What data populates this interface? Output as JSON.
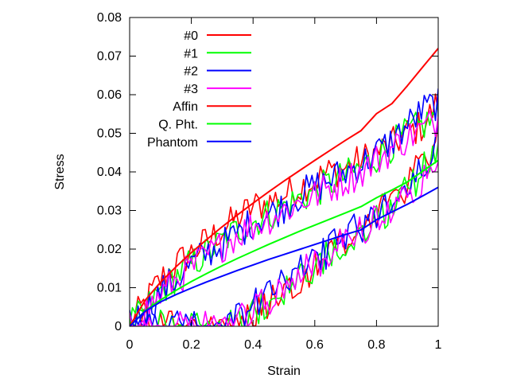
{
  "chart_data": {
    "type": "line",
    "title": "",
    "xlabel": "Strain",
    "ylabel": "Stress",
    "xlim": [
      0,
      1
    ],
    "ylim": [
      0,
      0.08
    ],
    "xticks": [
      "0",
      "0.2",
      "0.4",
      "0.6",
      "0.8",
      "1"
    ],
    "yticks": [
      "0",
      "0.01",
      "0.02",
      "0.03",
      "0.04",
      "0.05",
      "0.06",
      "0.07",
      "0.08"
    ],
    "grid": false,
    "legend_position": "top-left",
    "series": [
      {
        "name": "#0",
        "color": "#ff0000",
        "kind": "noisy",
        "x": [
          0,
          0.05,
          0.1,
          0.15,
          0.2,
          0.25,
          0.3,
          0.35,
          0.4,
          0.45,
          0.5,
          0.55,
          0.6,
          0.65,
          0.7,
          0.75,
          0.8,
          0.85,
          0.9,
          0.95,
          1.0
        ],
        "up": [
          0,
          0.006,
          0.012,
          0.016,
          0.019,
          0.022,
          0.025,
          0.028,
          0.031,
          0.032,
          0.034,
          0.036,
          0.038,
          0.04,
          0.041,
          0.043,
          0.045,
          0.047,
          0.05,
          0.052,
          0.058
        ],
        "down": [
          0,
          0,
          0,
          0,
          0,
          0,
          0,
          0,
          0.002,
          0.006,
          0.009,
          0.012,
          0.016,
          0.019,
          0.022,
          0.026,
          0.029,
          0.033,
          0.037,
          0.042,
          0.05
        ]
      },
      {
        "name": "#1",
        "color": "#00ff00",
        "kind": "noisy",
        "x": [
          0,
          0.05,
          0.1,
          0.15,
          0.2,
          0.25,
          0.3,
          0.35,
          0.4,
          0.45,
          0.5,
          0.55,
          0.6,
          0.65,
          0.7,
          0.75,
          0.8,
          0.85,
          0.9,
          0.95,
          1.0
        ],
        "up": [
          0,
          0.004,
          0.009,
          0.013,
          0.016,
          0.019,
          0.022,
          0.025,
          0.027,
          0.029,
          0.031,
          0.033,
          0.035,
          0.037,
          0.039,
          0.041,
          0.044,
          0.047,
          0.05,
          0.052,
          0.055
        ],
        "down": [
          0,
          0,
          0,
          0,
          0,
          0,
          0,
          0,
          0.003,
          0.007,
          0.01,
          0.013,
          0.016,
          0.019,
          0.022,
          0.025,
          0.028,
          0.031,
          0.035,
          0.04,
          0.048
        ]
      },
      {
        "name": "#2",
        "color": "#0000ff",
        "kind": "noisy",
        "x": [
          0,
          0.05,
          0.1,
          0.15,
          0.2,
          0.25,
          0.3,
          0.35,
          0.4,
          0.45,
          0.5,
          0.55,
          0.6,
          0.65,
          0.7,
          0.75,
          0.8,
          0.85,
          0.9,
          0.95,
          1.0
        ],
        "up": [
          0,
          0.004,
          0.009,
          0.012,
          0.016,
          0.019,
          0.021,
          0.024,
          0.027,
          0.029,
          0.031,
          0.034,
          0.036,
          0.038,
          0.04,
          0.042,
          0.045,
          0.048,
          0.052,
          0.056,
          0.058
        ],
        "down": [
          0,
          0,
          0,
          0,
          0,
          0,
          0,
          0.002,
          0.005,
          0.008,
          0.011,
          0.014,
          0.017,
          0.02,
          0.023,
          0.026,
          0.029,
          0.032,
          0.036,
          0.041,
          0.048
        ]
      },
      {
        "name": "#3",
        "color": "#ff00ff",
        "kind": "noisy",
        "x": [
          0,
          0.05,
          0.1,
          0.15,
          0.2,
          0.25,
          0.3,
          0.35,
          0.4,
          0.45,
          0.5,
          0.55,
          0.6,
          0.65,
          0.7,
          0.75,
          0.8,
          0.85,
          0.9,
          0.95,
          1.0
        ],
        "up": [
          0,
          0.004,
          0.008,
          0.012,
          0.015,
          0.018,
          0.021,
          0.024,
          0.026,
          0.028,
          0.03,
          0.032,
          0.034,
          0.036,
          0.038,
          0.04,
          0.043,
          0.046,
          0.049,
          0.051,
          0.054
        ],
        "down": [
          0,
          0,
          0,
          0,
          0,
          0,
          0,
          0.001,
          0.004,
          0.007,
          0.01,
          0.013,
          0.016,
          0.019,
          0.022,
          0.025,
          0.028,
          0.031,
          0.034,
          0.039,
          0.046
        ]
      },
      {
        "name": "Affin",
        "color": "#ff0000",
        "kind": "smooth",
        "x": [
          0,
          0.05,
          0.1,
          0.15,
          0.2,
          0.25,
          0.3,
          0.35,
          0.4,
          0.45,
          0.5,
          0.55,
          0.6,
          0.65,
          0.7,
          0.75,
          0.8,
          0.85,
          0.9,
          0.95,
          1.0
        ],
        "y": [
          0,
          0.0067,
          0.0114,
          0.0154,
          0.0191,
          0.0225,
          0.0258,
          0.0289,
          0.0319,
          0.0348,
          0.0376,
          0.0403,
          0.043,
          0.0456,
          0.0482,
          0.0507,
          0.0551,
          0.0577,
          0.0623,
          0.0672,
          0.072
        ]
      },
      {
        "name": "Q. Pht.",
        "color": "#00ff00",
        "kind": "smooth",
        "x": [
          0,
          0.05,
          0.1,
          0.15,
          0.2,
          0.25,
          0.3,
          0.35,
          0.4,
          0.45,
          0.5,
          0.55,
          0.6,
          0.65,
          0.7,
          0.75,
          0.8,
          0.85,
          0.9,
          0.95,
          1.0
        ],
        "y": [
          0,
          0.004,
          0.0068,
          0.0093,
          0.0116,
          0.0137,
          0.0157,
          0.0176,
          0.0194,
          0.0212,
          0.0229,
          0.0246,
          0.0262,
          0.0278,
          0.0294,
          0.031,
          0.0333,
          0.0353,
          0.0374,
          0.0402,
          0.043
        ]
      },
      {
        "name": "Phantom",
        "color": "#0000ff",
        "kind": "smooth",
        "x": [
          0,
          0.05,
          0.1,
          0.15,
          0.2,
          0.25,
          0.3,
          0.35,
          0.4,
          0.45,
          0.5,
          0.55,
          0.6,
          0.65,
          0.7,
          0.75,
          0.8,
          0.85,
          0.9,
          0.95,
          1.0
        ],
        "y": [
          0,
          0.0039,
          0.0063,
          0.0082,
          0.0099,
          0.0115,
          0.013,
          0.0145,
          0.0159,
          0.0173,
          0.0186,
          0.0199,
          0.0212,
          0.0225,
          0.0238,
          0.025,
          0.0276,
          0.0296,
          0.0316,
          0.0338,
          0.036
        ]
      }
    ]
  }
}
